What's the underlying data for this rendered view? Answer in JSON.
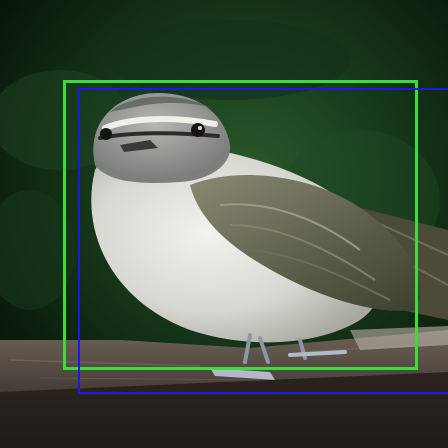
{
  "image": {
    "subject": "bird-on-wooden-ledge",
    "background": "dark-green-foliage"
  },
  "annotations": {
    "boxes": [
      {
        "name": "detection-box-green",
        "color": "#3bdc3b"
      },
      {
        "name": "detection-box-blue",
        "color": "#1a1ae6"
      }
    ]
  }
}
